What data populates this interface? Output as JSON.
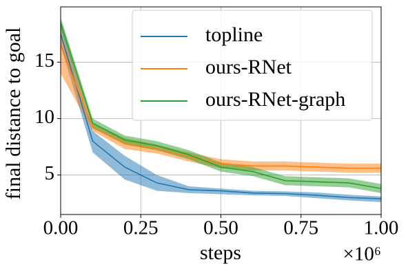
{
  "chart_data": {
    "type": "line",
    "xlabel": "steps",
    "ylabel": "final distance to goal",
    "x_offset_label": "×10⁶",
    "x": [
      0,
      0.1,
      0.2,
      0.3,
      0.4,
      0.5,
      0.6,
      0.7,
      0.8,
      0.9,
      1.0
    ],
    "xlim": [
      0,
      1.0
    ],
    "xticks": [
      {
        "value": 0,
        "label": "0.00"
      },
      {
        "value": 0.25,
        "label": "0.25"
      },
      {
        "value": 0.5,
        "label": "0.50"
      },
      {
        "value": 0.75,
        "label": "0.75"
      },
      {
        "value": 1.0,
        "label": "1.00"
      }
    ],
    "ylim": [
      1.5,
      19.9
    ],
    "yticks": [
      5,
      10,
      15
    ],
    "grid": true,
    "legend": "upper right",
    "series": [
      {
        "name": "topline",
        "color": "#1f77b4",
        "values": [
          17.5,
          8.0,
          5.7,
          4.3,
          3.7,
          3.6,
          3.4,
          3.35,
          3.2,
          3.0,
          2.9
        ],
        "lower": [
          16.5,
          7.0,
          4.6,
          3.6,
          3.4,
          3.3,
          3.2,
          3.15,
          2.95,
          2.75,
          2.6
        ],
        "upper": [
          18.5,
          8.9,
          6.7,
          5.0,
          4.0,
          3.8,
          3.6,
          3.55,
          3.45,
          3.25,
          3.1
        ]
      },
      {
        "name": "ours-RNet",
        "color": "#ff7f0e",
        "values": [
          16.5,
          9.2,
          7.8,
          7.3,
          6.6,
          6.0,
          5.8,
          5.8,
          5.7,
          5.6,
          5.6
        ],
        "lower": [
          14.0,
          8.9,
          7.3,
          6.9,
          6.2,
          5.6,
          5.4,
          5.4,
          5.3,
          5.2,
          5.2
        ],
        "upper": [
          18.0,
          9.6,
          8.3,
          7.7,
          7.0,
          6.4,
          6.2,
          6.2,
          6.1,
          6.0,
          6.0
        ]
      },
      {
        "name": "ours-RNet-graph",
        "color": "#2ca02c",
        "values": [
          18.5,
          9.6,
          8.1,
          7.6,
          6.8,
          5.7,
          5.3,
          4.5,
          4.4,
          4.3,
          3.8
        ],
        "lower": [
          18.0,
          9.2,
          7.7,
          7.2,
          6.4,
          5.3,
          4.9,
          4.1,
          4.0,
          3.9,
          3.4
        ],
        "upper": [
          19.0,
          10.0,
          8.5,
          8.0,
          7.2,
          6.1,
          5.7,
          4.9,
          4.8,
          4.7,
          4.2
        ]
      }
    ]
  }
}
